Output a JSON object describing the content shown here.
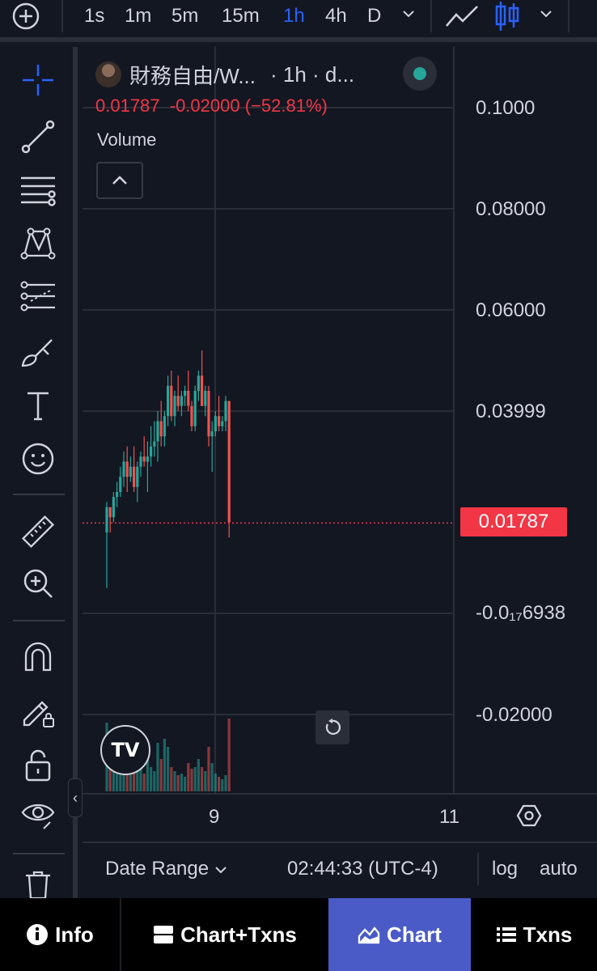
{
  "topbar": {
    "timeframes": [
      "1s",
      "1m",
      "5m",
      "15m",
      "1h",
      "4h",
      "D"
    ],
    "active_timeframe": "1h"
  },
  "legend": {
    "symbol": "財務自由/W...",
    "interval": "· 1h · d...",
    "ohlc_text": "0.01787  -0.02000 (−52.81%)",
    "volume_label": "Volume"
  },
  "price_axis": {
    "labels": [
      "0.1000",
      "0.08000",
      "0.06000",
      "0.03999",
      "-0.0₁₇6938",
      "-0.02000"
    ],
    "last_price": "0.01787"
  },
  "time_axis": {
    "labels": [
      "9",
      "11"
    ]
  },
  "bottom_controls": {
    "date_range": "Date Range",
    "time": "02:44:33 (UTC-4)",
    "log": "log",
    "auto": "auto"
  },
  "tabs": [
    {
      "label": "Info"
    },
    {
      "label": "Chart+Txns"
    },
    {
      "label": "Chart"
    },
    {
      "label": "Txns"
    }
  ],
  "colors": {
    "up": "#26a69a",
    "down": "#ef5350",
    "accent": "#2962ff",
    "tab_active": "#4a5bc8"
  },
  "chart_data": {
    "type": "candlestick",
    "interval": "1h",
    "last": 0.01787,
    "change": -0.02,
    "change_pct": -52.81,
    "y_ticks": [
      0.1,
      0.08,
      0.06,
      0.03999,
      -0.02
    ],
    "x_ticks": [
      "9",
      "11"
    ],
    "candles": [
      {
        "o": 0.016,
        "h": 0.022,
        "l": 0.005,
        "c": 0.021,
        "v": 85
      },
      {
        "o": 0.021,
        "h": 0.021,
        "l": 0.016,
        "c": 0.019,
        "v": 40
      },
      {
        "o": 0.019,
        "h": 0.024,
        "l": 0.018,
        "c": 0.023,
        "v": 55
      },
      {
        "o": 0.023,
        "h": 0.026,
        "l": 0.021,
        "c": 0.024,
        "v": 30
      },
      {
        "o": 0.024,
        "h": 0.029,
        "l": 0.023,
        "c": 0.027,
        "v": 45
      },
      {
        "o": 0.027,
        "h": 0.032,
        "l": 0.025,
        "c": 0.03,
        "v": 70
      },
      {
        "o": 0.03,
        "h": 0.033,
        "l": 0.024,
        "c": 0.027,
        "v": 40
      },
      {
        "o": 0.027,
        "h": 0.031,
        "l": 0.026,
        "c": 0.029,
        "v": 25
      },
      {
        "o": 0.029,
        "h": 0.033,
        "l": 0.024,
        "c": 0.025,
        "v": 30
      },
      {
        "o": 0.025,
        "h": 0.03,
        "l": 0.022,
        "c": 0.029,
        "v": 35
      },
      {
        "o": 0.029,
        "h": 0.032,
        "l": 0.027,
        "c": 0.031,
        "v": 28
      },
      {
        "o": 0.031,
        "h": 0.035,
        "l": 0.029,
        "c": 0.03,
        "v": 22
      },
      {
        "o": 0.03,
        "h": 0.034,
        "l": 0.024,
        "c": 0.031,
        "v": 50
      },
      {
        "o": 0.031,
        "h": 0.037,
        "l": 0.029,
        "c": 0.033,
        "v": 30
      },
      {
        "o": 0.033,
        "h": 0.038,
        "l": 0.031,
        "c": 0.034,
        "v": 25
      },
      {
        "o": 0.034,
        "h": 0.04,
        "l": 0.03,
        "c": 0.038,
        "v": 60
      },
      {
        "o": 0.038,
        "h": 0.042,
        "l": 0.033,
        "c": 0.035,
        "v": 40
      },
      {
        "o": 0.035,
        "h": 0.04,
        "l": 0.033,
        "c": 0.039,
        "v": 65
      },
      {
        "o": 0.039,
        "h": 0.047,
        "l": 0.037,
        "c": 0.045,
        "v": 55
      },
      {
        "o": 0.045,
        "h": 0.048,
        "l": 0.038,
        "c": 0.039,
        "v": 30
      },
      {
        "o": 0.039,
        "h": 0.044,
        "l": 0.037,
        "c": 0.043,
        "v": 25
      },
      {
        "o": 0.043,
        "h": 0.047,
        "l": 0.04,
        "c": 0.041,
        "v": 20
      },
      {
        "o": 0.041,
        "h": 0.044,
        "l": 0.039,
        "c": 0.043,
        "v": 22
      },
      {
        "o": 0.043,
        "h": 0.045,
        "l": 0.041,
        "c": 0.044,
        "v": 18
      },
      {
        "o": 0.044,
        "h": 0.048,
        "l": 0.04,
        "c": 0.041,
        "v": 35
      },
      {
        "o": 0.041,
        "h": 0.042,
        "l": 0.036,
        "c": 0.037,
        "v": 28
      },
      {
        "o": 0.037,
        "h": 0.045,
        "l": 0.036,
        "c": 0.044,
        "v": 30
      },
      {
        "o": 0.044,
        "h": 0.048,
        "l": 0.042,
        "c": 0.047,
        "v": 40
      },
      {
        "o": 0.047,
        "h": 0.052,
        "l": 0.041,
        "c": 0.041,
        "v": 30
      },
      {
        "o": 0.041,
        "h": 0.045,
        "l": 0.039,
        "c": 0.044,
        "v": 25
      },
      {
        "o": 0.044,
        "h": 0.045,
        "l": 0.033,
        "c": 0.035,
        "v": 55
      },
      {
        "o": 0.035,
        "h": 0.038,
        "l": 0.028,
        "c": 0.036,
        "v": 35
      },
      {
        "o": 0.036,
        "h": 0.04,
        "l": 0.035,
        "c": 0.039,
        "v": 22
      },
      {
        "o": 0.039,
        "h": 0.043,
        "l": 0.036,
        "c": 0.037,
        "v": 18
      },
      {
        "o": 0.037,
        "h": 0.039,
        "l": 0.036,
        "c": 0.038,
        "v": 15
      },
      {
        "o": 0.038,
        "h": 0.043,
        "l": 0.036,
        "c": 0.042,
        "v": 20
      },
      {
        "o": 0.042,
        "h": 0.042,
        "l": 0.015,
        "c": 0.018,
        "v": 90
      }
    ],
    "volume_max": 100
  }
}
